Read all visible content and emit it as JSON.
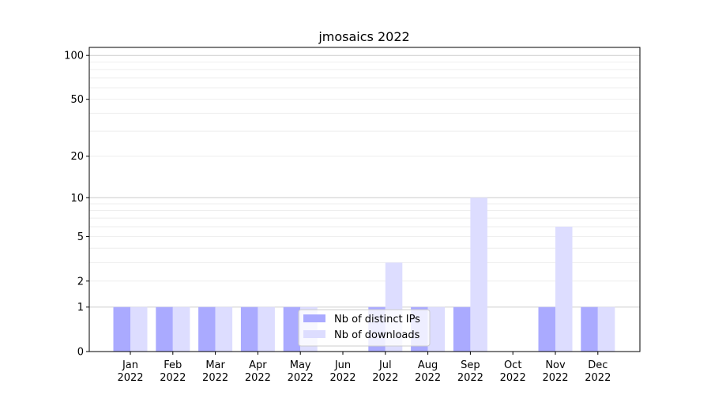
{
  "chart_data": {
    "type": "bar",
    "title": "jmosaics 2022",
    "xlabel": "",
    "ylabel": "",
    "yscale": "log(1+y)",
    "ylim": [
      0,
      113.5
    ],
    "yticks": [
      0,
      1,
      2,
      5,
      10,
      20,
      50,
      100
    ],
    "grid": true,
    "legend_position": "bottom-center",
    "categories": [
      [
        "Jan",
        "2022"
      ],
      [
        "Feb",
        "2022"
      ],
      [
        "Mar",
        "2022"
      ],
      [
        "Apr",
        "2022"
      ],
      [
        "May",
        "2022"
      ],
      [
        "Jun",
        "2022"
      ],
      [
        "Jul",
        "2022"
      ],
      [
        "Aug",
        "2022"
      ],
      [
        "Sep",
        "2022"
      ],
      [
        "Oct",
        "2022"
      ],
      [
        "Nov",
        "2022"
      ],
      [
        "Dec",
        "2022"
      ]
    ],
    "series": [
      {
        "name": "Nb of distinct IPs",
        "color": "#aaaaff",
        "values": [
          1,
          1,
          1,
          1,
          1,
          0,
          1,
          1,
          1,
          0,
          1,
          1
        ]
      },
      {
        "name": "Nb of downloads",
        "color": "#ddddff",
        "values": [
          1,
          1,
          1,
          1,
          1,
          0,
          3,
          1,
          10,
          0,
          6,
          1
        ]
      }
    ]
  }
}
